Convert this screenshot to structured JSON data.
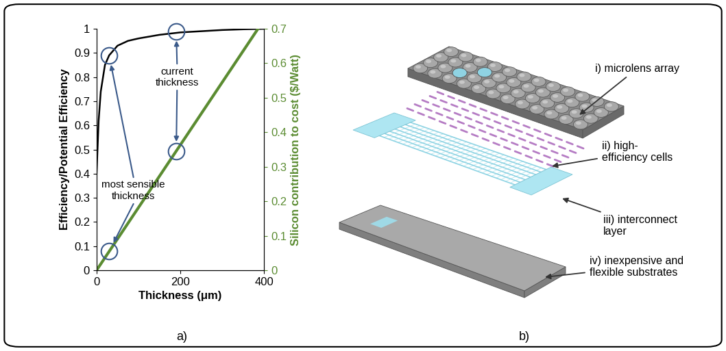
{
  "panels": [
    "a)",
    "b)"
  ],
  "chart_data": {
    "type": "line",
    "xlabel": "Thickness (μm)",
    "ylabel": "Efficiency/Potential Efficiency",
    "y2label": "Silicon contribution to cost ($/Watt)",
    "xlim": [
      0,
      400
    ],
    "xticks": [
      0,
      200,
      400
    ],
    "ylim": [
      0,
      1
    ],
    "yticks": [
      0,
      0.1,
      0.2,
      0.3,
      0.4,
      0.5,
      0.6,
      0.7,
      0.8,
      0.9,
      1
    ],
    "y2lim": [
      0,
      0.7
    ],
    "y2ticks": [
      0,
      0.1,
      0.2,
      0.3,
      0.4,
      0.5,
      0.6,
      0.7
    ],
    "series": [
      {
        "color": "#000000",
        "x": [
          0,
          5,
          10,
          20,
          30,
          40,
          50,
          75,
          100,
          150,
          200,
          250,
          300,
          350,
          400
        ],
        "values": [
          0.4,
          0.62,
          0.74,
          0.85,
          0.89,
          0.91,
          0.93,
          0.95,
          0.96,
          0.975,
          0.985,
          0.99,
          0.995,
          0.998,
          1.0
        ]
      },
      {
        "color": "#5b8c32",
        "axis": "y2",
        "x": [
          0,
          385
        ],
        "values": [
          0,
          0.7
        ]
      }
    ],
    "annotations": [
      {
        "text": "current\nthickness",
        "points": [
          {
            "x": 190,
            "y": 0.99
          },
          {
            "x": 190,
            "y": 0.345,
            "axis": "y2"
          }
        ]
      },
      {
        "text": "most sensible\nthickness",
        "points": [
          {
            "x": 30,
            "y": 0.89
          },
          {
            "x": 30,
            "y": 0.055,
            "axis": "y2"
          }
        ]
      }
    ]
  },
  "diagram": {
    "layers": [
      {
        "label": "i) microlens array"
      },
      {
        "label": "ii) high-\nefficiency cells"
      },
      {
        "label": "iii) interconnect\nlayer"
      },
      {
        "label": "iv) inexpensive and\nflexible substrates"
      }
    ]
  }
}
